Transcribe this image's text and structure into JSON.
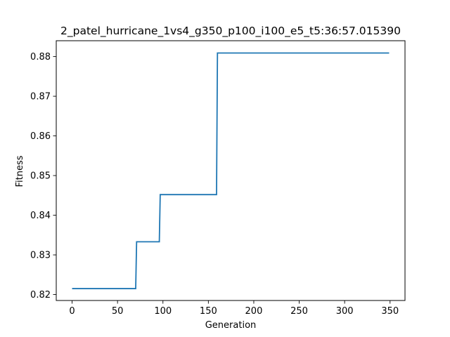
{
  "chart_data": {
    "type": "line",
    "title": "2_patel_hurricane_1vs4_g350_p100_i100_e5_t5:36:57.015390",
    "xlabel": "Generation",
    "ylabel": "Fitness",
    "xlim": [
      -17.45,
      366.45
    ],
    "ylim": [
      0.8185,
      0.884
    ],
    "xticks": [
      {
        "value": 0,
        "label": "0"
      },
      {
        "value": 50,
        "label": "50"
      },
      {
        "value": 100,
        "label": "100"
      },
      {
        "value": 150,
        "label": "150"
      },
      {
        "value": 200,
        "label": "200"
      },
      {
        "value": 250,
        "label": "250"
      },
      {
        "value": 300,
        "label": "300"
      },
      {
        "value": 350,
        "label": "350"
      }
    ],
    "yticks": [
      {
        "value": 0.82,
        "label": "0.82"
      },
      {
        "value": 0.83,
        "label": "0.83"
      },
      {
        "value": 0.84,
        "label": "0.84"
      },
      {
        "value": 0.85,
        "label": "0.85"
      },
      {
        "value": 0.86,
        "label": "0.86"
      },
      {
        "value": 0.87,
        "label": "0.87"
      },
      {
        "value": 0.88,
        "label": "0.88"
      }
    ],
    "grid": false,
    "series": [
      {
        "color": "#1f77b4",
        "x": [
          0,
          70,
          71,
          96,
          97,
          159,
          160,
          349
        ],
        "y": [
          0.8215,
          0.8215,
          0.8333,
          0.8333,
          0.8452,
          0.8452,
          0.8809,
          0.8809
        ]
      }
    ]
  }
}
